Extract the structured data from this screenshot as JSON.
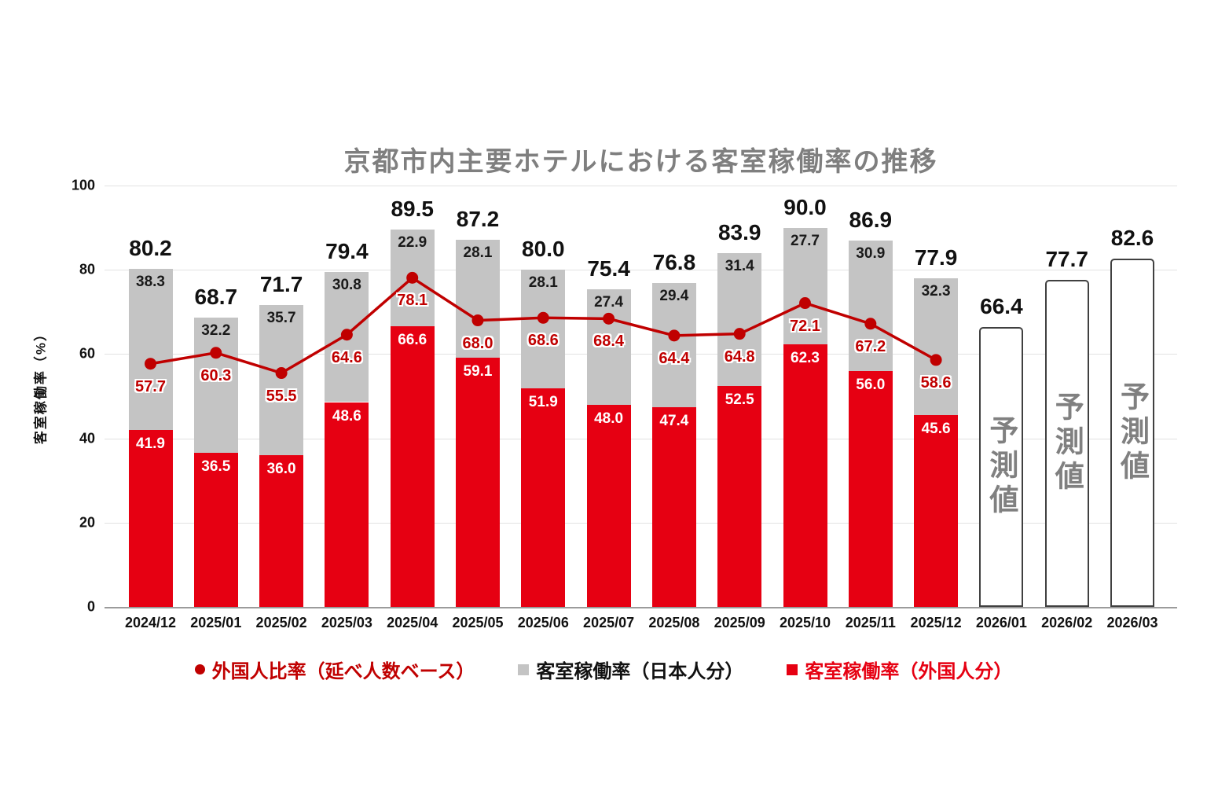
{
  "chart_data": {
    "type": "bar",
    "stacked": true,
    "title": "京都市内主要ホテルにおける客室稼働率の推移",
    "ylabel": "客室稼働率（%）",
    "ylim": [
      0,
      100
    ],
    "yticks": [
      0,
      20,
      40,
      60,
      80,
      100
    ],
    "grid": true,
    "legend_position": "bottom",
    "categories": [
      "2024/12",
      "2025/01",
      "2025/02",
      "2025/03",
      "2025/04",
      "2025/05",
      "2025/06",
      "2025/07",
      "2025/08",
      "2025/09",
      "2025/10",
      "2025/11",
      "2025/12",
      "2026/01",
      "2026/02",
      "2026/03"
    ],
    "series": [
      {
        "name": "客室稼働率（外国人分）",
        "color": "#e60012",
        "label_color": "#ffffff",
        "values": [
          41.9,
          36.5,
          36.0,
          48.6,
          66.6,
          59.1,
          51.9,
          48.0,
          47.4,
          52.5,
          62.3,
          56.0,
          45.6,
          null,
          null,
          null
        ]
      },
      {
        "name": "客室稼働率（日本人分）",
        "color": "#c4c4c4",
        "label_color": "#1a1a1a",
        "values": [
          38.3,
          32.2,
          35.7,
          30.8,
          22.9,
          28.1,
          28.1,
          27.4,
          29.4,
          31.4,
          27.7,
          30.9,
          32.3,
          null,
          null,
          null
        ]
      }
    ],
    "totals": [
      80.2,
      68.7,
      71.7,
      79.4,
      89.5,
      87.2,
      80.0,
      75.4,
      76.8,
      83.9,
      90.0,
      86.9,
      77.9,
      66.4,
      77.7,
      82.6
    ],
    "line_series": {
      "name": "外国人比率（延べ人数ベース）",
      "color": "#c00000",
      "label_color": "#c00000",
      "values": [
        57.7,
        60.3,
        55.5,
        64.6,
        78.1,
        68.0,
        68.6,
        68.4,
        64.4,
        64.8,
        72.1,
        67.2,
        58.6,
        null,
        null,
        null
      ]
    },
    "forecast": {
      "indices": [
        13,
        14,
        15
      ],
      "label": "予測値",
      "text_color": "#808080",
      "border_color": "#404040",
      "fill": "#ffffff"
    },
    "legend": [
      {
        "label": "外国人比率（延べ人数ベース）",
        "marker": "circle",
        "color": "#c00000",
        "text_color": "#c00000"
      },
      {
        "label": "客室稼働率（日本人分）",
        "marker": "square",
        "color": "#c4c4c4",
        "text_color": "#111111"
      },
      {
        "label": "客室稼働率（外国人分）",
        "marker": "square",
        "color": "#e60012",
        "text_color": "#e60012"
      }
    ]
  }
}
